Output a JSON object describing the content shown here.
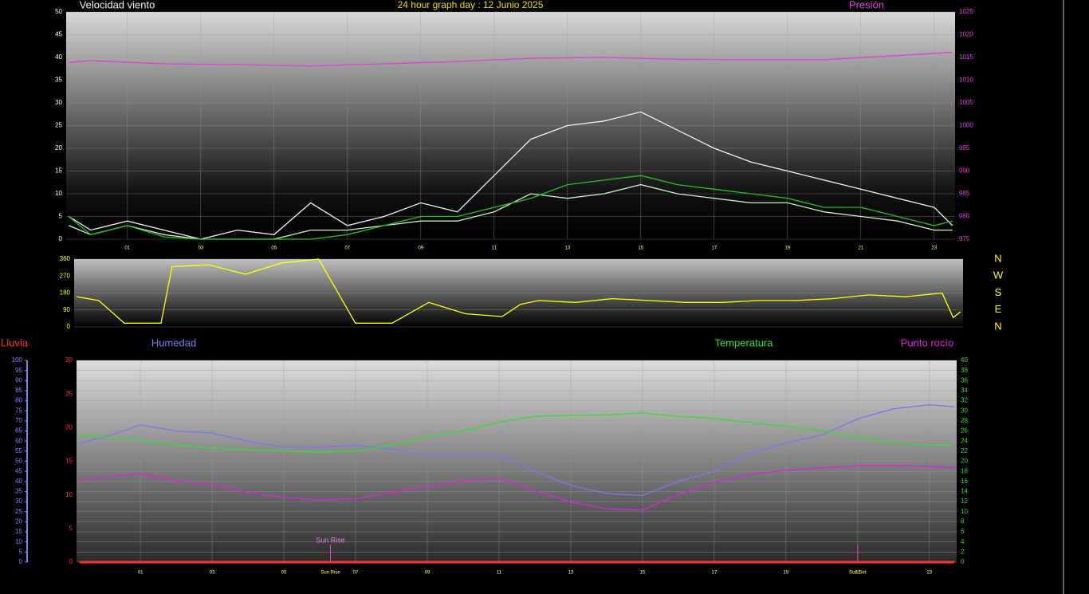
{
  "chart_data": [
    {
      "type": "line",
      "title": "24 hour graph day : 12 Junio 2025",
      "xlim": [
        -0.67,
        23.57
      ],
      "xticks": [
        {
          "value": 1,
          "label": "01"
        },
        {
          "value": 3,
          "label": "03"
        },
        {
          "value": 5,
          "label": "05"
        },
        {
          "value": 7,
          "label": "07"
        },
        {
          "value": 9,
          "label": "09"
        },
        {
          "value": 11,
          "label": "11"
        },
        {
          "value": 13,
          "label": "13"
        },
        {
          "value": 15,
          "label": "15"
        },
        {
          "value": 17,
          "label": "17"
        },
        {
          "value": 19,
          "label": "19"
        },
        {
          "value": 21,
          "label": "21"
        },
        {
          "value": 23,
          "label": "23"
        }
      ],
      "ylim": [
        0,
        50
      ],
      "yticks": [
        0,
        5,
        10,
        15,
        20,
        25,
        30,
        35,
        40,
        45,
        50
      ],
      "y2lim": [
        975,
        1025
      ],
      "y2ticks": [
        975,
        980,
        985,
        990,
        995,
        1000,
        1005,
        1010,
        1015,
        1020,
        1025
      ],
      "axis_colors": {
        "y": "#ffffff",
        "y2": "#e040e0"
      },
      "grid": true,
      "grid_axis": "y",
      "series": [
        {
          "name": "Velocidad viento",
          "color": "#f0f0f0",
          "x": [
            -0.6,
            0,
            1,
            2,
            3,
            4,
            5,
            6,
            7,
            8,
            9,
            10,
            11,
            12,
            13,
            14,
            15,
            16,
            17,
            18,
            19,
            20,
            21,
            22,
            23,
            23.5
          ],
          "values": [
            5,
            2,
            4,
            2,
            0,
            2,
            1,
            8,
            3,
            5,
            8,
            6,
            14,
            22,
            25,
            26,
            28,
            24,
            20,
            17,
            15,
            13,
            11,
            9,
            7,
            3
          ]
        },
        {
          "color": "#c8f0c8",
          "x": [
            -0.6,
            0,
            1,
            2,
            3,
            4,
            5,
            6,
            7,
            8,
            9,
            10,
            11,
            12,
            13,
            14,
            15,
            16,
            17,
            18,
            19,
            20,
            21,
            22,
            23,
            23.5
          ],
          "values": [
            3,
            1,
            3,
            1,
            0,
            0,
            0,
            2,
            2,
            3,
            4,
            4,
            6,
            10,
            9,
            10,
            12,
            10,
            9,
            8,
            8,
            6,
            5,
            4,
            2,
            2
          ]
        },
        {
          "color": "#20c020",
          "x": [
            -0.6,
            0,
            1,
            2,
            3,
            4,
            5,
            6,
            7,
            8,
            9,
            10,
            11,
            12,
            13,
            14,
            15,
            16,
            17,
            18,
            19,
            20,
            21,
            22,
            23,
            23.5
          ],
          "values": [
            5,
            1,
            3,
            0.5,
            0,
            0,
            0,
            0,
            1,
            3,
            5,
            5,
            7,
            9,
            12,
            13,
            14,
            12,
            11,
            10,
            9,
            7,
            7,
            5,
            3,
            4
          ]
        },
        {
          "name": "Presión",
          "color": "#e040e0",
          "axis": "y2",
          "x": [
            -0.6,
            0,
            2,
            4,
            6,
            8,
            10,
            12,
            14,
            16,
            18,
            20,
            22,
            23.5
          ],
          "values": [
            1013.9,
            1014.3,
            1013.6,
            1013.4,
            1013.1,
            1013.6,
            1014.1,
            1014.8,
            1015,
            1014.6,
            1014.5,
            1014.5,
            1015.4,
            1016.1
          ]
        }
      ]
    },
    {
      "type": "line",
      "xlim": [
        -0.67,
        23.57
      ],
      "ylim": [
        0,
        360
      ],
      "yticks": [
        0,
        90,
        180,
        270,
        360
      ],
      "axis_colors": {
        "y": "#ffff00"
      },
      "grid": true,
      "grid_axis": "y",
      "compass": [
        "N",
        "W",
        "S",
        "E",
        "N"
      ],
      "series": [
        {
          "color": "#ffff00",
          "x": [
            -0.6,
            0,
            0.7,
            1,
            1.7,
            2,
            3,
            4,
            5,
            6,
            7,
            8,
            9,
            10,
            11,
            11.5,
            12,
            13,
            14,
            15,
            16,
            17,
            18,
            19,
            20,
            21,
            22,
            23,
            23.3,
            23.5
          ],
          "values": [
            160,
            140,
            20,
            20,
            20,
            320,
            330,
            280,
            340,
            360,
            20,
            20,
            130,
            70,
            55,
            120,
            140,
            130,
            150,
            140,
            130,
            130,
            140,
            140,
            150,
            170,
            160,
            180,
            50,
            80
          ]
        }
      ]
    },
    {
      "type": "line",
      "xlim": [
        -0.78,
        23.76
      ],
      "xticks": [
        {
          "value": 1,
          "label": "01"
        },
        {
          "value": 3,
          "label": "03"
        },
        {
          "value": 5,
          "label": "05"
        },
        {
          "value": 7,
          "label": "07"
        },
        {
          "value": 9,
          "label": "09"
        },
        {
          "value": 11,
          "label": "11"
        },
        {
          "value": 13,
          "label": "13"
        },
        {
          "value": 15,
          "label": "15"
        },
        {
          "value": 17,
          "label": "17"
        },
        {
          "value": 19,
          "label": "19"
        },
        {
          "value": 21,
          "label": "21"
        },
        {
          "value": 23,
          "label": "23"
        }
      ],
      "x": [
        -0.7,
        0,
        1,
        2,
        3,
        4,
        5,
        6,
        7,
        8,
        9,
        10,
        11,
        12,
        13,
        14,
        15,
        16,
        17,
        18,
        19,
        20,
        21,
        22,
        23,
        23.7
      ],
      "ylim": [
        0,
        30
      ],
      "yticks": [
        0,
        5,
        10,
        15,
        20,
        25,
        30
      ],
      "y2lim": [
        0,
        40
      ],
      "y2ticks": [
        0,
        2,
        4,
        6,
        8,
        10,
        12,
        14,
        16,
        18,
        20,
        22,
        24,
        26,
        28,
        30,
        32,
        34,
        36,
        38,
        40
      ],
      "y3lim": [
        0,
        100
      ],
      "y3ticks": [
        0,
        5,
        10,
        15,
        20,
        25,
        30,
        35,
        40,
        45,
        50,
        55,
        60,
        65,
        70,
        75,
        80,
        85,
        90,
        95,
        100
      ],
      "axis_colors": {
        "y": "#ff3030",
        "y2": "#30e030",
        "y3": "#8080ff"
      },
      "grid": true,
      "grid_axis": "y2",
      "markers": [
        {
          "label": "Sun Rise",
          "x": 6.3
        },
        {
          "label": "Sun Set",
          "x": 21.0
        }
      ],
      "annotations": [
        {
          "text": "Sun Rise",
          "x": 6.3
        }
      ],
      "series": [
        {
          "name": "Lluvia",
          "color": "#ff3030",
          "axis": "y",
          "values": [
            0,
            0,
            0,
            0,
            0,
            0,
            0,
            0,
            0,
            0,
            0,
            0,
            0,
            0,
            0,
            0,
            0,
            0,
            0,
            0,
            0,
            0,
            0,
            0,
            0,
            0
          ]
        },
        {
          "name": "Humedad",
          "color": "#7878f0",
          "axis": "y3",
          "values": [
            59,
            62,
            68,
            65,
            64,
            60,
            57,
            57,
            58,
            56,
            53,
            53,
            53,
            45,
            38,
            34,
            33,
            40,
            45,
            54,
            59,
            63,
            71,
            76,
            78,
            77
          ]
        },
        {
          "name": "Temperatura",
          "color": "#30e030",
          "axis": "y2",
          "values": [
            25.3,
            24.8,
            24.2,
            23.2,
            22.6,
            22.3,
            22,
            21.8,
            22,
            23.2,
            24.8,
            26.1,
            27.7,
            28.9,
            29.1,
            29.2,
            29.6,
            28.9,
            28.5,
            27.7,
            26.9,
            26.1,
            24.8,
            23.7,
            23.2,
            23.2
          ]
        },
        {
          "name": "Punto rocío",
          "color": "#e020e0",
          "axis": "y2",
          "values": [
            16.3,
            16.9,
            17.5,
            16.1,
            15.3,
            13.8,
            12.8,
            12.3,
            12.5,
            13.8,
            15,
            16.1,
            16.6,
            14.2,
            11.9,
            10.6,
            10.3,
            13.4,
            15.8,
            17.4,
            18.2,
            18.7,
            19.1,
            19.1,
            19,
            18.7
          ]
        }
      ]
    }
  ]
}
